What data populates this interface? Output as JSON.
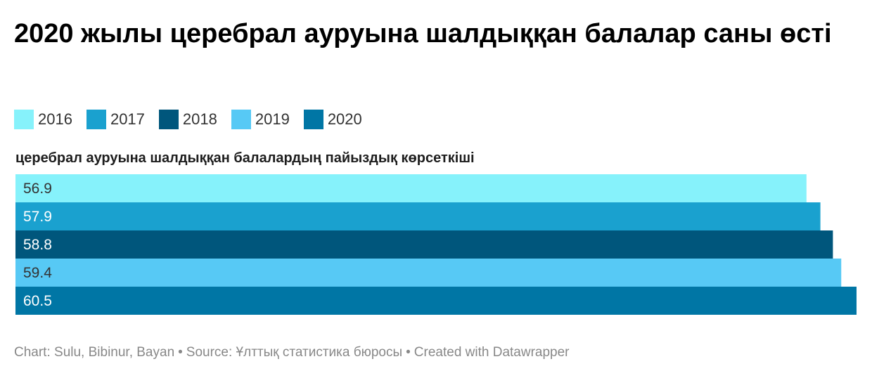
{
  "title": "2020 жылы церебрал ауруына шалдыққан балалар саны өсті",
  "legend": [
    {
      "label": "2016",
      "color": "#86f2fb"
    },
    {
      "label": "2017",
      "color": "#1aa1cf"
    },
    {
      "label": "2018",
      "color": "#00567c"
    },
    {
      "label": "2019",
      "color": "#57c9f5"
    },
    {
      "label": "2020",
      "color": "#0076a5"
    }
  ],
  "chart_data": {
    "type": "bar",
    "orientation": "horizontal",
    "title": "2020 жылы церебрал ауруына шалдыққан балалар саны өсті",
    "row_label": "церебрал ауруына шалдыққан балалардың пайыздық көрсеткіші",
    "series": [
      {
        "name": "2016",
        "values": [
          56.9
        ],
        "color": "#86f2fb",
        "label_color": "#333333"
      },
      {
        "name": "2017",
        "values": [
          57.9
        ],
        "color": "#1aa1cf",
        "label_color": "#ffffff"
      },
      {
        "name": "2018",
        "values": [
          58.8
        ],
        "color": "#00567c",
        "label_color": "#ffffff"
      },
      {
        "name": "2019",
        "values": [
          59.4
        ],
        "color": "#57c9f5",
        "label_color": "#333333"
      },
      {
        "name": "2020",
        "values": [
          60.5
        ],
        "color": "#0076a5",
        "label_color": "#ffffff"
      }
    ],
    "xlim": [
      0,
      60.5
    ],
    "grid": false,
    "legend_position": "top-left"
  },
  "footer": {
    "chart_credit": "Chart: Sulu, Bibinur, Bayan",
    "source": "Source: Ұлттық статистика бюросы",
    "created": "Created with Datawrapper",
    "separator": "•"
  }
}
